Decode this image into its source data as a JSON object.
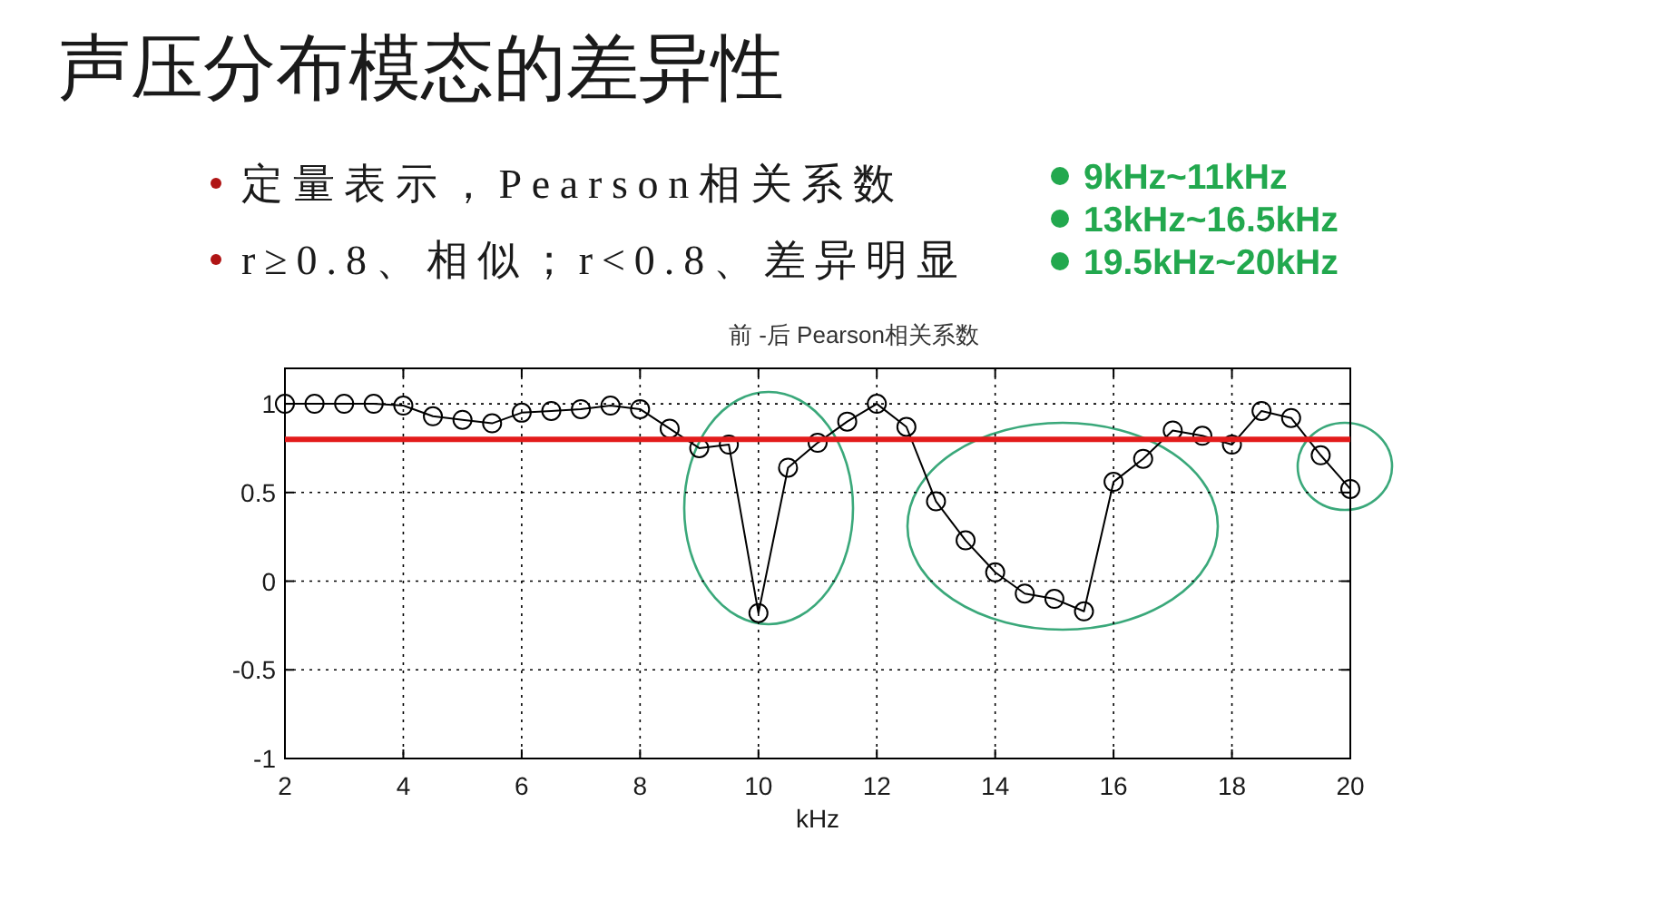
{
  "chart_data": {
    "type": "line",
    "title": "声压分布模态的差异性",
    "subtitle": "前 -后 Pearson相关系数",
    "xlabel": "kHz",
    "x": [
      2,
      2.5,
      3,
      3.5,
      4,
      4.5,
      5,
      5.5,
      6,
      6.5,
      7,
      7.5,
      8,
      8.5,
      9,
      9.5,
      10,
      10.5,
      11,
      11.5,
      12,
      12.5,
      13,
      13.5,
      14,
      14.5,
      15,
      15.5,
      16,
      16.5,
      17,
      17.5,
      18,
      18.5,
      19,
      19.5,
      20
    ],
    "series": [
      {
        "color": "#000000",
        "values": [
          1.0,
          1.0,
          1.0,
          1.0,
          0.99,
          0.93,
          0.91,
          0.89,
          0.95,
          0.96,
          0.97,
          0.99,
          0.97,
          0.86,
          0.75,
          0.77,
          -0.18,
          0.64,
          0.78,
          0.9,
          1.0,
          0.87,
          0.45,
          0.23,
          0.05,
          -0.07,
          -0.1,
          -0.17,
          0.56,
          0.69,
          0.85,
          0.82,
          0.77,
          0.96,
          0.92,
          0.71,
          0.52
        ]
      }
    ],
    "xlim": [
      2,
      20
    ],
    "xticks": [
      2,
      4,
      6,
      8,
      10,
      12,
      14,
      16,
      18,
      20
    ],
    "ylim": [
      -1,
      1.2
    ],
    "yticks": [
      -1,
      -0.5,
      0,
      0.5,
      1
    ],
    "grid": true,
    "marker": "circle",
    "line_style": "solid",
    "ref_lines": [
      {
        "axis": "y",
        "value": 0.8,
        "color": "#e31b1b"
      }
    ],
    "annotations": [
      "定量表示，Pearson相关系数",
      "r≥0.8、相似；r<0.8、差异明显",
      "9kHz~11kHz",
      "13kHz~16.5kHz",
      "19.5kHz~20kHz"
    ]
  }
}
